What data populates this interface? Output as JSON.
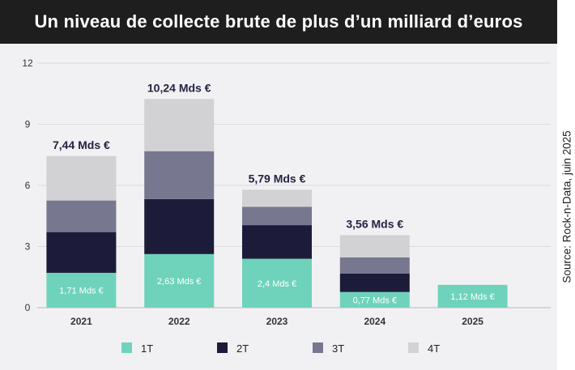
{
  "header": {
    "title": "Un niveau de collecte brute de plus d’un milliard d’euros"
  },
  "source_note": "Source: Rock-n-Data, juin 2025",
  "colors": {
    "1T": "#6fd3bb",
    "2T": "#1c1c3a",
    "3T": "#77778f",
    "4T": "#d2d2d4",
    "panel": "#f1f1f3",
    "title_bg": "#1e1e1e"
  },
  "chart_data": {
    "type": "bar",
    "stacked": true,
    "title": "",
    "xlabel": "",
    "ylabel": "",
    "ylim": [
      0,
      12
    ],
    "yticks": [
      "0",
      "3",
      "6",
      "9",
      "12"
    ],
    "grid": true,
    "legend_position": "bottom",
    "categories": [
      "2021",
      "2022",
      "2023",
      "2024",
      "2025"
    ],
    "series": [
      {
        "name": "1T",
        "values": [
          1.71,
          2.63,
          2.4,
          0.77,
          1.12
        ]
      },
      {
        "name": "2T",
        "values": [
          2.0,
          2.7,
          1.65,
          0.9,
          null
        ]
      },
      {
        "name": "3T",
        "values": [
          1.55,
          2.35,
          0.9,
          0.8,
          null
        ]
      },
      {
        "name": "4T",
        "values": [
          2.18,
          2.56,
          0.84,
          1.09,
          null
        ]
      }
    ],
    "segment_labels": [
      "1,71 Mds €",
      "2,63 Mds €",
      "2,4 Mds €",
      "0,77 Mds €",
      "1,12 Mds €"
    ],
    "totals": [
      7.44,
      10.24,
      5.79,
      3.56,
      null
    ],
    "total_labels": [
      "7,44 Mds €",
      "10,24 Mds €",
      "5,79 Mds €",
      "3,56 Mds €",
      ""
    ]
  }
}
